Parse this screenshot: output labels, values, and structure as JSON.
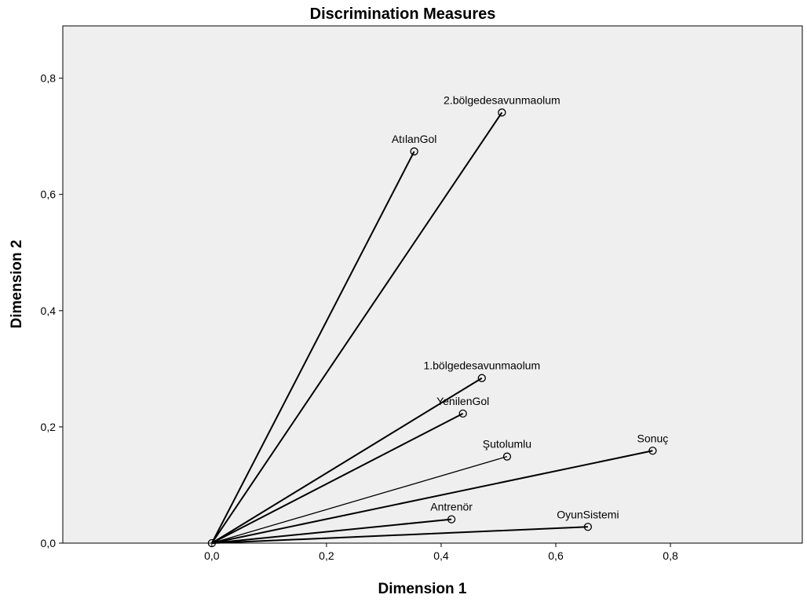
{
  "chart_data": {
    "type": "scatter",
    "title": "Discrimination Measures",
    "xlabel": "Dimension 1",
    "ylabel": "Dimension 2",
    "xlim": [
      -0.26,
      1.03
    ],
    "ylim": [
      0,
      0.89
    ],
    "x_ticks": [
      {
        "value": 0.0,
        "label": "0,0"
      },
      {
        "value": 0.2,
        "label": "0,2"
      },
      {
        "value": 0.4,
        "label": "0,4"
      },
      {
        "value": 0.6,
        "label": "0,6"
      },
      {
        "value": 0.8,
        "label": "0,8"
      }
    ],
    "y_ticks": [
      {
        "value": 0.0,
        "label": "0,0"
      },
      {
        "value": 0.2,
        "label": "0,2"
      },
      {
        "value": 0.4,
        "label": "0,4"
      },
      {
        "value": 0.6,
        "label": "0,6"
      },
      {
        "value": 0.8,
        "label": "0,8"
      }
    ],
    "origin": {
      "x": 0,
      "y": 0
    },
    "points": [
      {
        "label": "2.bölgedesavunmaolum",
        "x": 0.506,
        "y": 0.741
      },
      {
        "label": "AtılanGol",
        "x": 0.353,
        "y": 0.674
      },
      {
        "label": "1.bölgedesavunmaolum",
        "x": 0.471,
        "y": 0.284
      },
      {
        "label": "YenilenGol",
        "x": 0.438,
        "y": 0.223
      },
      {
        "label": "Şutolumlu",
        "x": 0.515,
        "y": 0.149
      },
      {
        "label": "Sonuç",
        "x": 0.769,
        "y": 0.159
      },
      {
        "label": "Antrenör",
        "x": 0.418,
        "y": 0.041
      },
      {
        "label": "OyunSistemi",
        "x": 0.656,
        "y": 0.028
      }
    ],
    "grid": false,
    "plot_background": "#efefef",
    "line_color": "#000000"
  }
}
